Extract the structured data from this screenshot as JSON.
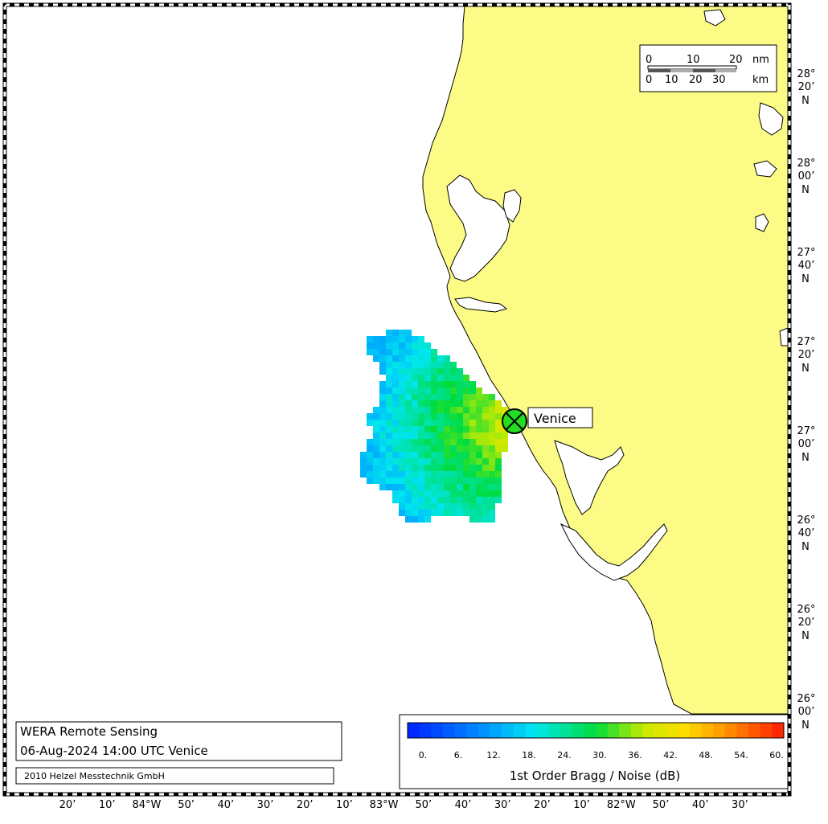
{
  "map": {
    "station": {
      "name": "Venice"
    },
    "scale_bar": {
      "nm_ticks": [
        "0",
        "10",
        "20"
      ],
      "nm_unit": "nm",
      "km_ticks": [
        "0",
        "10",
        "20",
        "30"
      ],
      "km_unit": "km"
    },
    "lat_labels": [
      {
        "deg": "28°",
        "min": "20’",
        "hem": "N"
      },
      {
        "deg": "28°",
        "min": "00’",
        "hem": "N"
      },
      {
        "deg": "27°",
        "min": "40’",
        "hem": "N"
      },
      {
        "deg": "27°",
        "min": "20’",
        "hem": "N"
      },
      {
        "deg": "27°",
        "min": "00’",
        "hem": "N"
      },
      {
        "deg": "26°",
        "min": "40’",
        "hem": "N"
      },
      {
        "deg": "26°",
        "min": "20’",
        "hem": "N"
      },
      {
        "deg": "26°",
        "min": "00’",
        "hem": "N"
      }
    ],
    "lon_labels": [
      "20’",
      "10’",
      "84°W",
      "50’",
      "40’",
      "30’",
      "20’",
      "10’",
      "83°W",
      "50’",
      "40’",
      "30’",
      "20’",
      "10’",
      "82°W",
      "50’",
      "40’",
      "30’"
    ],
    "info": {
      "title": "WERA Remote Sensing",
      "timestamp": "06-Aug-2024 14:00 UTC  Venice",
      "copyright": "2010 Helzel Messtechnik GmbH"
    },
    "colorbar": {
      "ticks": [
        "0.",
        "6.",
        "12.",
        "18.",
        "24.",
        "30.",
        "36.",
        "42.",
        "48.",
        "54.",
        "60."
      ],
      "label": "1st Order Bragg / Noise (dB)",
      "min": 0,
      "max": 60
    },
    "colors": {
      "land": "#fbfb86",
      "water": "#ffffff",
      "station_marker": "#22dd22"
    }
  }
}
